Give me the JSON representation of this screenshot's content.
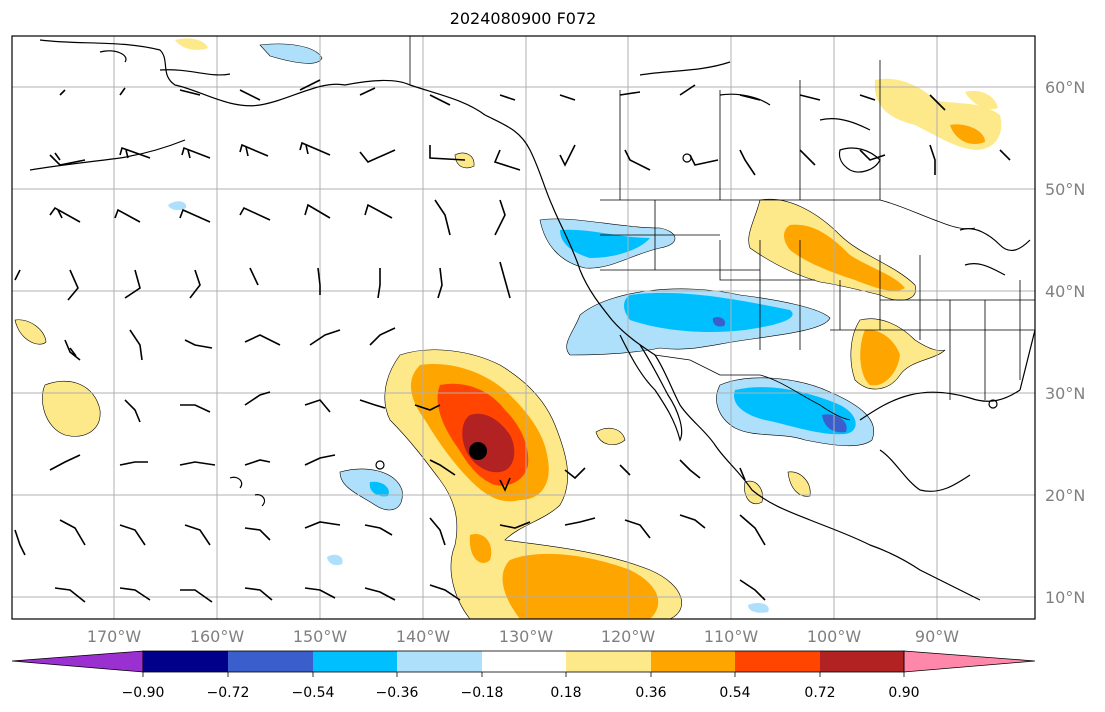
{
  "title": "2024080900 F072",
  "map": {
    "lat_labels": [
      "60°N",
      "50°N",
      "40°N",
      "30°N",
      "20°N",
      "10°N"
    ],
    "lon_labels": [
      "170°W",
      "160°W",
      "150°W",
      "140°W",
      "130°W",
      "120°W",
      "110°W",
      "100°W",
      "90°W"
    ],
    "grid": true,
    "marker": "storm-center-dot",
    "colors": {
      "ocean": "#ffffff",
      "coast": "#000000",
      "gridline": "#b0b0b0"
    }
  },
  "colorbar": {
    "colors": [
      "#9b30d0",
      "#00008b",
      "#3a5fcd",
      "#00bfff",
      "#aee0fb",
      "#ffffff",
      "#fde98a",
      "#ffa500",
      "#ff4500",
      "#b22222",
      "#ff88aa"
    ],
    "tick_labels": [
      "−0.90",
      "−0.72",
      "−0.54",
      "−0.36",
      "−0.18",
      "0.18",
      "0.36",
      "0.54",
      "0.72",
      "0.90"
    ]
  }
}
